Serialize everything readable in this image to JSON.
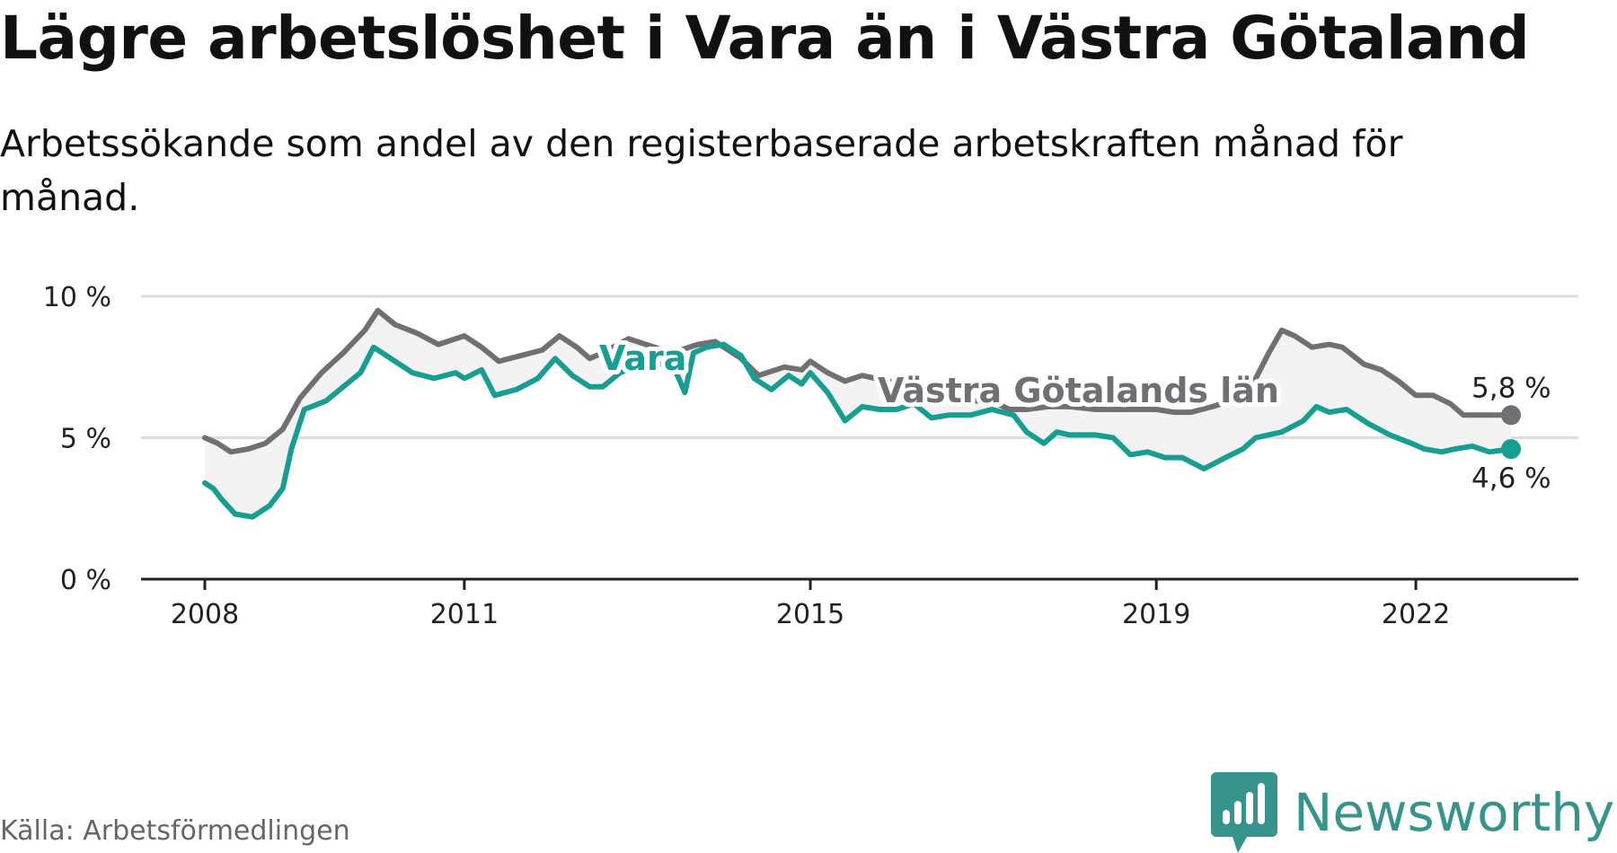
{
  "header": {
    "title": "Lägre arbetslöshet i Vara än i Västra Götaland",
    "subtitle": "Arbetssökande som andel av den registerbaserade arbetskraften månad för månad."
  },
  "footer": {
    "source": "Källa: Arbetsförmedlingen",
    "brand": "Newsworthy"
  },
  "colors": {
    "vara": "#169e93",
    "vg": "#707074",
    "band": "#f3f3f3",
    "grid": "#dddddd",
    "axis": "#222222"
  },
  "chart_data": {
    "type": "line",
    "title": "Lägre arbetslöshet i Vara än i Västra Götaland",
    "xlabel": "",
    "ylabel": "",
    "ylim": [
      0,
      10
    ],
    "xlim": [
      2007.25,
      2023.6
    ],
    "y_ticks": [
      0,
      5,
      10
    ],
    "y_tick_labels": [
      "0 %",
      "5 %",
      "10 %"
    ],
    "x_ticks": [
      2008,
      2011,
      2015,
      2019,
      2022
    ],
    "x_tick_labels": [
      "2008",
      "2011",
      "2015",
      "2019",
      "2022"
    ],
    "grid": true,
    "series": [
      {
        "name": "Västra Götalands län",
        "label": "Västra Götalands län",
        "last_value_label": "5,8 %",
        "points": [
          [
            2008.0,
            5.0
          ],
          [
            2008.15,
            4.8
          ],
          [
            2008.3,
            4.5
          ],
          [
            2008.5,
            4.6
          ],
          [
            2008.7,
            4.8
          ],
          [
            2008.9,
            5.3
          ],
          [
            2009.1,
            6.4
          ],
          [
            2009.35,
            7.3
          ],
          [
            2009.6,
            8.0
          ],
          [
            2009.85,
            8.8
          ],
          [
            2010.0,
            9.5
          ],
          [
            2010.2,
            9.0
          ],
          [
            2010.45,
            8.7
          ],
          [
            2010.7,
            8.3
          ],
          [
            2011.0,
            8.6
          ],
          [
            2011.2,
            8.2
          ],
          [
            2011.4,
            7.7
          ],
          [
            2011.65,
            7.9
          ],
          [
            2011.9,
            8.1
          ],
          [
            2012.1,
            8.6
          ],
          [
            2012.3,
            8.2
          ],
          [
            2012.45,
            7.8
          ],
          [
            2012.6,
            8.0
          ],
          [
            2012.9,
            8.5
          ],
          [
            2013.2,
            8.2
          ],
          [
            2013.4,
            8.0
          ],
          [
            2013.7,
            8.3
          ],
          [
            2013.9,
            8.4
          ],
          [
            2014.2,
            7.8
          ],
          [
            2014.4,
            7.2
          ],
          [
            2014.7,
            7.5
          ],
          [
            2014.9,
            7.4
          ],
          [
            2015.0,
            7.7
          ],
          [
            2015.2,
            7.3
          ],
          [
            2015.4,
            7.0
          ],
          [
            2015.6,
            7.2
          ],
          [
            2015.9,
            7.0
          ],
          [
            2016.1,
            6.8
          ],
          [
            2016.4,
            6.6
          ],
          [
            2016.7,
            6.4
          ],
          [
            2016.9,
            6.3
          ],
          [
            2017.1,
            6.3
          ],
          [
            2017.3,
            6.0
          ],
          [
            2017.5,
            6.0
          ],
          [
            2017.75,
            6.1
          ],
          [
            2018.0,
            6.1
          ],
          [
            2018.3,
            6.0
          ],
          [
            2018.55,
            6.0
          ],
          [
            2018.8,
            6.0
          ],
          [
            2019.0,
            6.0
          ],
          [
            2019.2,
            5.9
          ],
          [
            2019.4,
            5.9
          ],
          [
            2019.65,
            6.1
          ],
          [
            2019.85,
            6.3
          ],
          [
            2020.1,
            6.8
          ],
          [
            2020.3,
            8.0
          ],
          [
            2020.45,
            8.8
          ],
          [
            2020.6,
            8.6
          ],
          [
            2020.8,
            8.2
          ],
          [
            2021.0,
            8.3
          ],
          [
            2021.15,
            8.2
          ],
          [
            2021.4,
            7.6
          ],
          [
            2021.6,
            7.4
          ],
          [
            2021.8,
            7.0
          ],
          [
            2022.0,
            6.5
          ],
          [
            2022.2,
            6.5
          ],
          [
            2022.4,
            6.2
          ],
          [
            2022.55,
            5.8
          ],
          [
            2022.85,
            5.8
          ],
          [
            2023.1,
            5.8
          ]
        ]
      },
      {
        "name": "Vara",
        "label": "Vara",
        "last_value_label": "4,6 %",
        "points": [
          [
            2008.0,
            3.4
          ],
          [
            2008.1,
            3.2
          ],
          [
            2008.2,
            2.8
          ],
          [
            2008.35,
            2.3
          ],
          [
            2008.55,
            2.2
          ],
          [
            2008.75,
            2.6
          ],
          [
            2008.9,
            3.2
          ],
          [
            2009.0,
            4.6
          ],
          [
            2009.15,
            6.0
          ],
          [
            2009.4,
            6.3
          ],
          [
            2009.6,
            6.8
          ],
          [
            2009.8,
            7.3
          ],
          [
            2009.95,
            8.2
          ],
          [
            2010.15,
            7.8
          ],
          [
            2010.4,
            7.3
          ],
          [
            2010.65,
            7.1
          ],
          [
            2010.9,
            7.3
          ],
          [
            2011.0,
            7.1
          ],
          [
            2011.2,
            7.4
          ],
          [
            2011.35,
            6.5
          ],
          [
            2011.6,
            6.7
          ],
          [
            2011.85,
            7.1
          ],
          [
            2012.05,
            7.8
          ],
          [
            2012.25,
            7.2
          ],
          [
            2012.45,
            6.8
          ],
          [
            2012.6,
            6.8
          ],
          [
            2012.8,
            7.3
          ],
          [
            2013.05,
            7.6
          ],
          [
            2013.3,
            7.6
          ],
          [
            2013.45,
            7.3
          ],
          [
            2013.55,
            6.6
          ],
          [
            2013.65,
            8.0
          ],
          [
            2013.8,
            8.2
          ],
          [
            2014.0,
            8.3
          ],
          [
            2014.2,
            7.9
          ],
          [
            2014.35,
            7.1
          ],
          [
            2014.55,
            6.7
          ],
          [
            2014.75,
            7.2
          ],
          [
            2014.9,
            6.9
          ],
          [
            2015.0,
            7.3
          ],
          [
            2015.2,
            6.6
          ],
          [
            2015.4,
            5.6
          ],
          [
            2015.6,
            6.1
          ],
          [
            2015.8,
            6.0
          ],
          [
            2016.0,
            6.0
          ],
          [
            2016.2,
            6.2
          ],
          [
            2016.4,
            5.7
          ],
          [
            2016.6,
            5.8
          ],
          [
            2016.85,
            5.8
          ],
          [
            2017.1,
            6.0
          ],
          [
            2017.35,
            5.8
          ],
          [
            2017.5,
            5.2
          ],
          [
            2017.7,
            4.8
          ],
          [
            2017.85,
            5.2
          ],
          [
            2018.0,
            5.1
          ],
          [
            2018.3,
            5.1
          ],
          [
            2018.5,
            5.0
          ],
          [
            2018.7,
            4.4
          ],
          [
            2018.9,
            4.5
          ],
          [
            2019.1,
            4.3
          ],
          [
            2019.3,
            4.3
          ],
          [
            2019.55,
            3.9
          ],
          [
            2019.8,
            4.3
          ],
          [
            2020.0,
            4.6
          ],
          [
            2020.15,
            5.0
          ],
          [
            2020.45,
            5.2
          ],
          [
            2020.7,
            5.6
          ],
          [
            2020.85,
            6.1
          ],
          [
            2021.0,
            5.9
          ],
          [
            2021.2,
            6.0
          ],
          [
            2021.45,
            5.5
          ],
          [
            2021.7,
            5.1
          ],
          [
            2021.95,
            4.8
          ],
          [
            2022.1,
            4.6
          ],
          [
            2022.3,
            4.5
          ],
          [
            2022.45,
            4.6
          ],
          [
            2022.65,
            4.7
          ],
          [
            2022.85,
            4.5
          ],
          [
            2023.1,
            4.6
          ]
        ]
      }
    ]
  }
}
